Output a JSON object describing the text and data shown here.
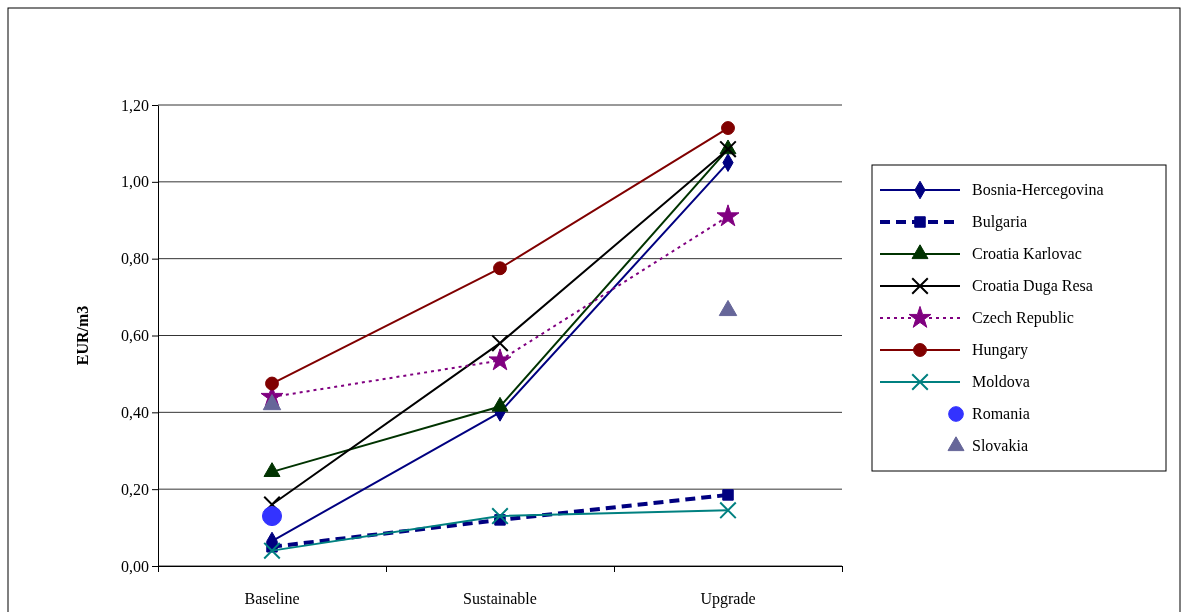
{
  "chart_data": {
    "type": "line",
    "ylabel": "EUR/m3",
    "categories": [
      "Baseline",
      "Sustainable",
      "Upgrade"
    ],
    "ylim": [
      0,
      1.2
    ],
    "yticks": [
      {
        "value": 0,
        "label": "0,00"
      },
      {
        "value": 0.2,
        "label": "0,20"
      },
      {
        "value": 0.4,
        "label": "0,40"
      },
      {
        "value": 0.6,
        "label": "0,60"
      },
      {
        "value": 0.8,
        "label": "0,80"
      },
      {
        "value": 1,
        "label": "1,00"
      },
      {
        "value": 1.2,
        "label": "1,20"
      }
    ],
    "grid": "y",
    "legend": "right",
    "series": [
      {
        "name": "Bosnia-Hercegovina",
        "color": "#000080",
        "marker": "diamond",
        "line_style": "solid",
        "values": [
          0.065,
          0.4,
          1.05
        ]
      },
      {
        "name": "Bulgaria",
        "color": "#000080",
        "marker": "square",
        "line_style": "dashed",
        "values": [
          0.05,
          0.12,
          0.185
        ]
      },
      {
        "name": "Croatia Karlovac",
        "color": "#003300",
        "marker": "triangle",
        "line_style": "solid",
        "values": [
          0.245,
          0.415,
          1.085
        ]
      },
      {
        "name": "Croatia Duga Resa",
        "color": "#000000",
        "marker": "cross",
        "line_style": "solid",
        "values": [
          0.16,
          0.58,
          1.085
        ]
      },
      {
        "name": "Czech Republic",
        "color": "#800080",
        "marker": "star",
        "line_style": "dotted",
        "values": [
          0.44,
          0.535,
          0.91
        ]
      },
      {
        "name": "Hungary",
        "color": "#800000",
        "marker": "circle",
        "line_style": "solid",
        "values": [
          0.475,
          0.775,
          1.14
        ]
      },
      {
        "name": "Moldova",
        "color": "#008080",
        "marker": "cross",
        "line_style": "solid",
        "values": [
          0.04,
          0.13,
          0.145
        ]
      },
      {
        "name": "Romania",
        "type": "scatter",
        "color": "#3333ff",
        "marker": "circle",
        "values": [
          0.13,
          null,
          null
        ]
      },
      {
        "name": "Slovakia",
        "type": "scatter",
        "color": "#666699",
        "marker": "triangle",
        "values": [
          0.42,
          null,
          0.665
        ]
      }
    ]
  }
}
